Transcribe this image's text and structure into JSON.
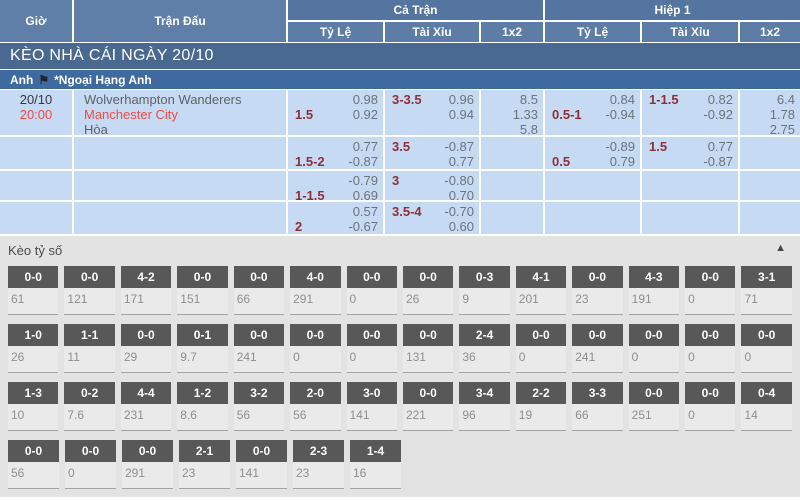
{
  "colors": {
    "header_blue": "#54759f",
    "league_bar_blue": "#3f6aa0",
    "section_bar_blue": "#4a6990",
    "cell_light_blue": "#c7daf4",
    "handicap_maroon": "#8d3038",
    "odds_gray": "#6c737b",
    "highlight_red": "#f24a45",
    "score_box_gray": "#585858",
    "score_section_bg": "#e3e3e3"
  },
  "header": {
    "col_time": "Giờ",
    "col_match": "Trận Đấu",
    "group_full": "Cả Trận",
    "group_half": "Hiệp 1",
    "sub_cols": [
      "Tỷ Lệ",
      "Tài Xỉu",
      "1x2"
    ]
  },
  "section_title": "KÈO NHÀ CÁI NGÀY 20/10",
  "league": {
    "country": "Anh",
    "flag_icon": "⚑",
    "name": "*Ngoại Hạng Anh"
  },
  "match": {
    "date": "20/10",
    "time": "20:00",
    "teams": [
      "Wolverhampton Wanderers",
      "Manchester City",
      "Hòa"
    ]
  },
  "odds_rows": [
    {
      "ft_hdp": {
        "hc": "1.5",
        "pos": "bottom",
        "vals": [
          "0.98",
          "0.92"
        ]
      },
      "ft_ou": {
        "hc": "3-3.5",
        "pos": "top",
        "vals": [
          "0.96",
          "0.94"
        ]
      },
      "ft_1x2": [
        "8.5",
        "1.33",
        "5.8"
      ],
      "h1_hdp": {
        "hc": "0.5-1",
        "pos": "bottom",
        "vals": [
          "0.84",
          "-0.94"
        ]
      },
      "h1_ou": {
        "hc": "1-1.5",
        "pos": "top",
        "vals": [
          "0.82",
          "-0.92"
        ]
      },
      "h1_1x2": [
        "6.4",
        "1.78",
        "2.75"
      ]
    },
    {
      "ft_hdp": {
        "hc": "1.5-2",
        "pos": "bottom",
        "vals": [
          "0.77",
          "-0.87"
        ]
      },
      "ft_ou": {
        "hc": "3.5",
        "pos": "top",
        "vals": [
          "-0.87",
          "0.77"
        ]
      },
      "ft_1x2": null,
      "h1_hdp": {
        "hc": "0.5",
        "pos": "bottom",
        "vals": [
          "-0.89",
          "0.79"
        ]
      },
      "h1_ou": {
        "hc": "1.5",
        "pos": "top",
        "vals": [
          "0.77",
          "-0.87"
        ]
      },
      "h1_1x2": null
    },
    {
      "ft_hdp": {
        "hc": "1-1.5",
        "pos": "bottom",
        "vals": [
          "-0.79",
          "0.69"
        ]
      },
      "ft_ou": {
        "hc": "3",
        "pos": "top",
        "vals": [
          "-0.80",
          "0.70"
        ]
      },
      "ft_1x2": null,
      "h1_hdp": null,
      "h1_ou": null,
      "h1_1x2": null
    },
    {
      "ft_hdp": {
        "hc": "2",
        "pos": "bottom",
        "vals": [
          "0.57",
          "-0.67"
        ]
      },
      "ft_ou": {
        "hc": "3.5-4",
        "pos": "top",
        "vals": [
          "-0.70",
          "0.60"
        ]
      },
      "ft_1x2": null,
      "h1_hdp": null,
      "h1_ou": null,
      "h1_1x2": null
    }
  ],
  "score_section": {
    "title": "Kèo tỷ số",
    "collapse_icon": "▲",
    "rows": [
      [
        {
          "score": "0-0",
          "value": "61"
        },
        {
          "score": "0-0",
          "value": "121"
        },
        {
          "score": "4-2",
          "value": "171"
        },
        {
          "score": "0-0",
          "value": "151"
        },
        {
          "score": "0-0",
          "value": "66"
        },
        {
          "score": "4-0",
          "value": "291"
        },
        {
          "score": "0-0",
          "value": "0"
        },
        {
          "score": "0-0",
          "value": "26"
        },
        {
          "score": "0-3",
          "value": "9"
        },
        {
          "score": "4-1",
          "value": "201"
        },
        {
          "score": "0-0",
          "value": "23"
        },
        {
          "score": "4-3",
          "value": "191"
        },
        {
          "score": "0-0",
          "value": "0"
        },
        {
          "score": "3-1",
          "value": "71"
        }
      ],
      [
        {
          "score": "1-0",
          "value": "26"
        },
        {
          "score": "1-1",
          "value": "11"
        },
        {
          "score": "0-0",
          "value": "29"
        },
        {
          "score": "0-1",
          "value": "9.7"
        },
        {
          "score": "0-0",
          "value": "241"
        },
        {
          "score": "0-0",
          "value": "0"
        },
        {
          "score": "0-0",
          "value": "0"
        },
        {
          "score": "0-0",
          "value": "131"
        },
        {
          "score": "2-4",
          "value": "36"
        },
        {
          "score": "0-0",
          "value": "0"
        },
        {
          "score": "0-0",
          "value": "241"
        },
        {
          "score": "0-0",
          "value": "0"
        },
        {
          "score": "0-0",
          "value": "0"
        },
        {
          "score": "0-0",
          "value": "0"
        }
      ],
      [
        {
          "score": "1-3",
          "value": "10"
        },
        {
          "score": "0-2",
          "value": "7.6"
        },
        {
          "score": "4-4",
          "value": "231"
        },
        {
          "score": "1-2",
          "value": "8.6"
        },
        {
          "score": "3-2",
          "value": "56"
        },
        {
          "score": "2-0",
          "value": "56"
        },
        {
          "score": "3-0",
          "value": "141"
        },
        {
          "score": "0-0",
          "value": "221"
        },
        {
          "score": "3-4",
          "value": "96"
        },
        {
          "score": "2-2",
          "value": "19"
        },
        {
          "score": "3-3",
          "value": "66"
        },
        {
          "score": "0-0",
          "value": "251"
        },
        {
          "score": "0-0",
          "value": "0"
        },
        {
          "score": "0-4",
          "value": "14"
        }
      ],
      [
        {
          "score": "0-0",
          "value": "56"
        },
        {
          "score": "0-0",
          "value": "0"
        },
        {
          "score": "0-0",
          "value": "291"
        },
        {
          "score": "2-1",
          "value": "23"
        },
        {
          "score": "0-0",
          "value": "141"
        },
        {
          "score": "2-3",
          "value": "23"
        },
        {
          "score": "1-4",
          "value": "16"
        }
      ]
    ]
  }
}
